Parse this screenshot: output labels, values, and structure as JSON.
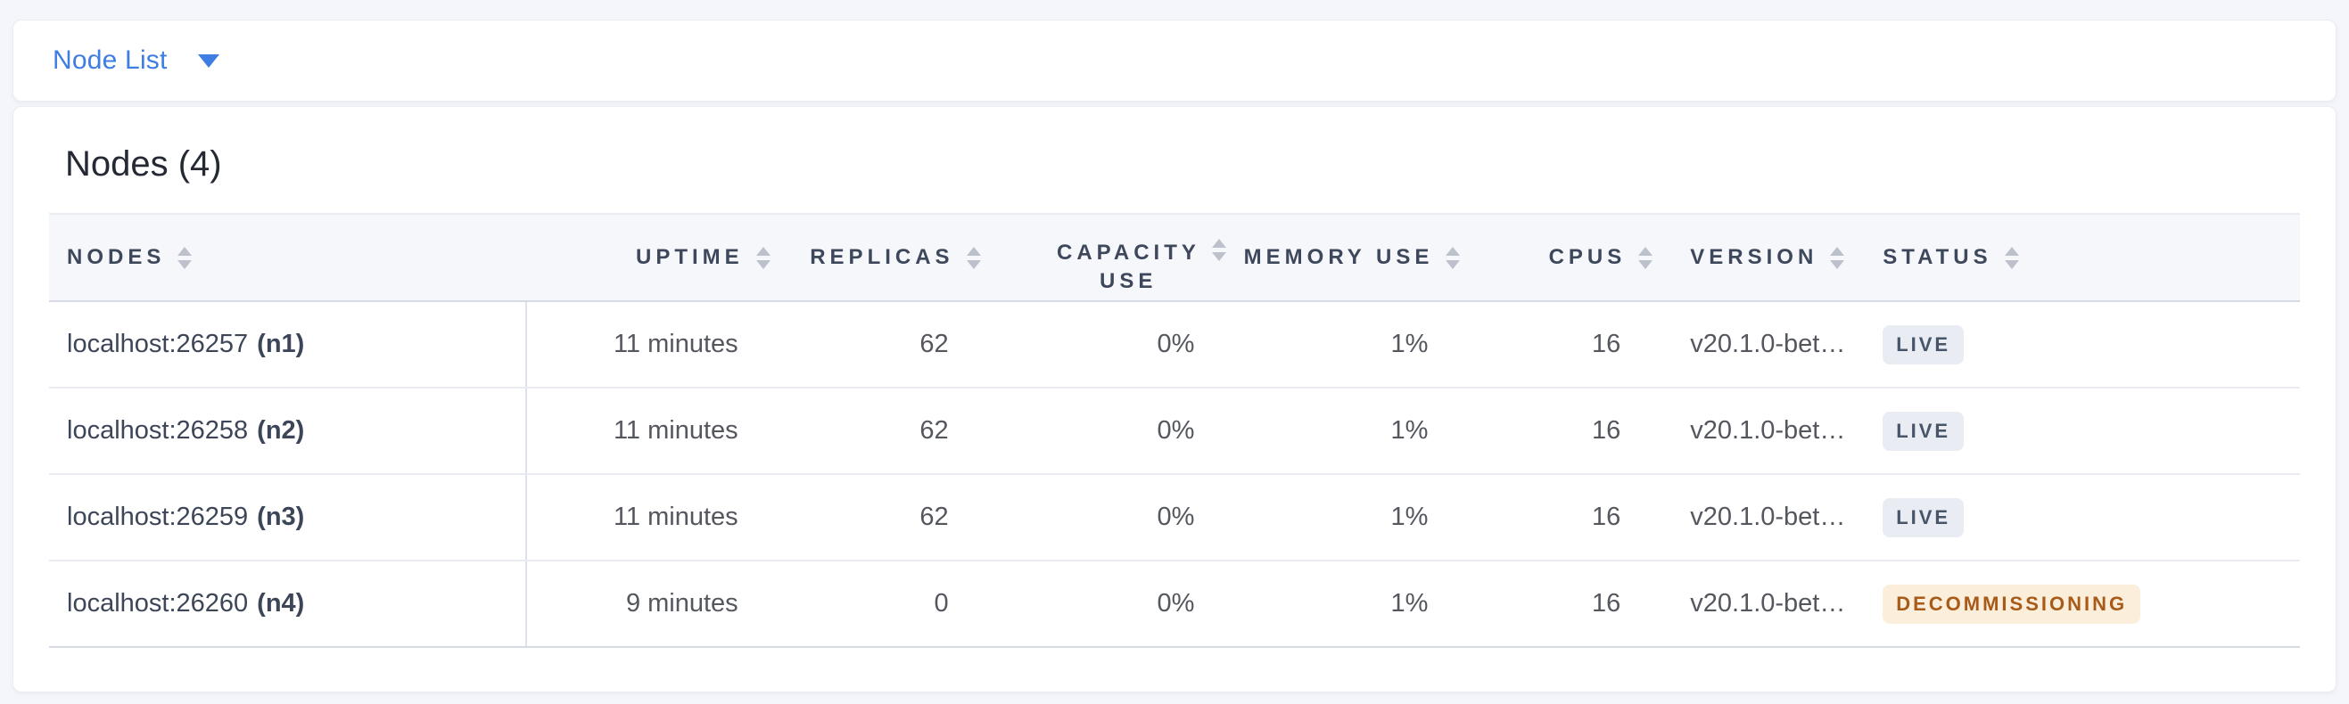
{
  "selector": {
    "label": "Node List"
  },
  "card": {
    "title": "Nodes (4)"
  },
  "colors": {
    "accent_blue": "#3e7de2",
    "page_background": "#f4f6fb",
    "header_text": "#3e485c",
    "live_badge_bg": "#e9ecf3",
    "live_badge_text": "#475569",
    "decommissioning_badge_bg": "#fbefdc",
    "decommissioning_badge_text": "#a85a18"
  },
  "table": {
    "columns": [
      {
        "label": "NODES"
      },
      {
        "label": "UPTIME"
      },
      {
        "label": "REPLICAS"
      },
      {
        "label": "CAPACITY USE"
      },
      {
        "label": "MEMORY USE"
      },
      {
        "label": "CPUS"
      },
      {
        "label": "VERSION"
      },
      {
        "label": "STATUS"
      }
    ],
    "rows": [
      {
        "address": "localhost:26257",
        "id": "(n1)",
        "uptime": "11 minutes",
        "replicas": "62",
        "capacity_use": "0%",
        "memory_use": "1%",
        "cpus": "16",
        "version": "v20.1.0-bet…",
        "status": "LIVE",
        "status_variant": "live"
      },
      {
        "address": "localhost:26258",
        "id": "(n2)",
        "uptime": "11 minutes",
        "replicas": "62",
        "capacity_use": "0%",
        "memory_use": "1%",
        "cpus": "16",
        "version": "v20.1.0-bet…",
        "status": "LIVE",
        "status_variant": "live"
      },
      {
        "address": "localhost:26259",
        "id": "(n3)",
        "uptime": "11 minutes",
        "replicas": "62",
        "capacity_use": "0%",
        "memory_use": "1%",
        "cpus": "16",
        "version": "v20.1.0-bet…",
        "status": "LIVE",
        "status_variant": "live"
      },
      {
        "address": "localhost:26260",
        "id": "(n4)",
        "uptime": "9 minutes",
        "replicas": "0",
        "capacity_use": "0%",
        "memory_use": "1%",
        "cpus": "16",
        "version": "v20.1.0-bet…",
        "status": "DECOMMISSIONING",
        "status_variant": "decommissioning"
      }
    ]
  }
}
